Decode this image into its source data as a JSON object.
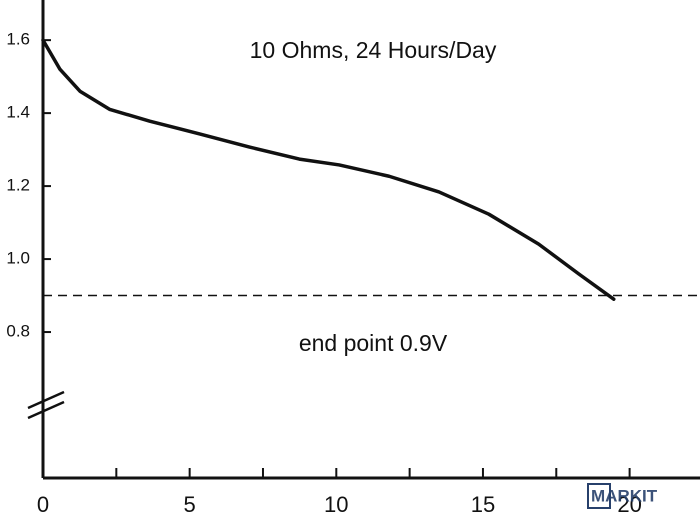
{
  "chart_data": {
    "type": "line",
    "annotations": [
      "10 Ohms, 24 Hours/Day",
      "end point 0.9V"
    ],
    "watermark": "MARKIT",
    "x": [
      0,
      0.58,
      1.26,
      2.28,
      3.64,
      5.34,
      7.04,
      8.74,
      10.1,
      11.8,
      13.5,
      15.2,
      16.9,
      18.27,
      19.46
    ],
    "series": [
      {
        "color": "#111111",
        "values": [
          1.6,
          1.52,
          1.46,
          1.41,
          1.378,
          1.343,
          1.307,
          1.274,
          1.258,
          1.227,
          1.184,
          1.123,
          1.041,
          0.959,
          0.89
        ]
      }
    ],
    "reference_line": 0.9,
    "xlim": [
      0,
      22.4
    ],
    "xticks": [
      0,
      5,
      10,
      15,
      20
    ],
    "xminor": [
      2.5,
      7.5,
      12.5,
      17.5
    ],
    "ylim": [
      0.4,
      1.71
    ],
    "yticks": [
      {
        "value": 0.8,
        "label": "0.8"
      },
      {
        "value": 1,
        "label": "1.0"
      },
      {
        "value": 1.2,
        "label": "1.2"
      },
      {
        "value": 1.4,
        "label": "1.4"
      },
      {
        "value": 1.6,
        "label": "1.6"
      }
    ],
    "grid": false
  }
}
